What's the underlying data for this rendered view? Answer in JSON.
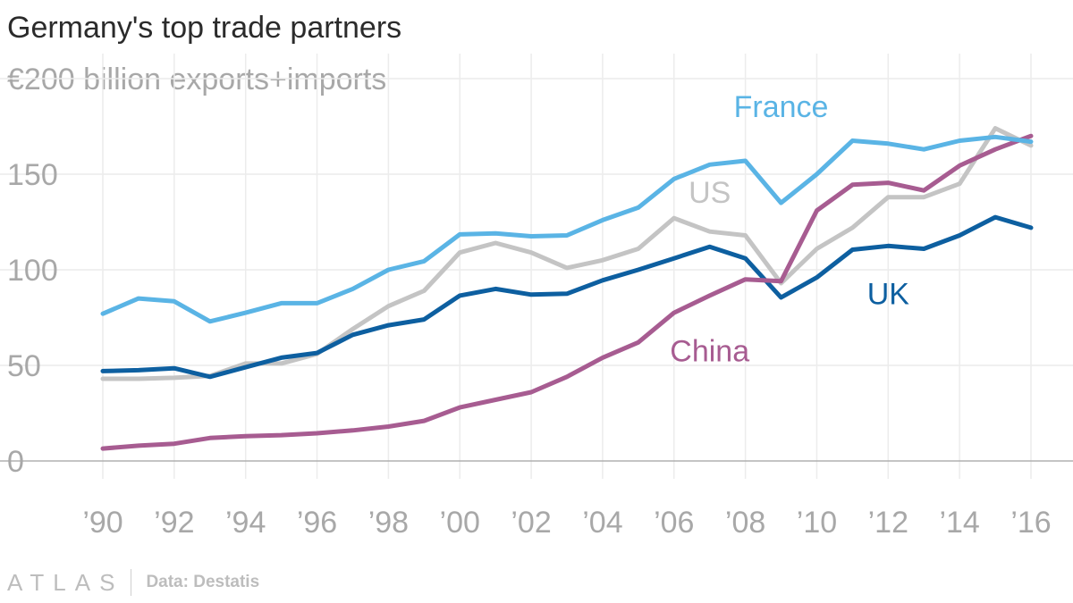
{
  "title": "Germany's top trade partners",
  "subtitle": "€200 billion exports+imports",
  "footer": {
    "logo": "ATLAS",
    "source": "Data: Destatis"
  },
  "colors": {
    "France": "#5ab4e5",
    "US": "#c4c4c4",
    "UK": "#0d5fa0",
    "China": "#a75c91",
    "grid": "#ececec",
    "axis": "#b0b0b0",
    "tick": "#a8a8a8"
  },
  "chart_data": {
    "type": "line",
    "title": "Germany's top trade partners",
    "subtitle": "€200 billion exports+imports",
    "xlabel": "",
    "ylabel": "",
    "x": [
      1990,
      1991,
      1992,
      1993,
      1994,
      1995,
      1996,
      1997,
      1998,
      1999,
      2000,
      2001,
      2002,
      2003,
      2004,
      2005,
      2006,
      2007,
      2008,
      2009,
      2010,
      2011,
      2012,
      2013,
      2014,
      2015,
      2016
    ],
    "xlim": [
      1990,
      2016
    ],
    "ylim": [
      0,
      200
    ],
    "xticks": [
      1990,
      1992,
      1994,
      1996,
      1998,
      2000,
      2002,
      2004,
      2006,
      2008,
      2010,
      2012,
      2014,
      2016
    ],
    "xtick_labels": [
      "’90",
      "’92",
      "’94",
      "’96",
      "’98",
      "’00",
      "’02",
      "’04",
      "’06",
      "’08",
      "’10",
      "’12",
      "’14",
      "’16"
    ],
    "yticks": [
      0,
      50,
      100,
      150
    ],
    "ytick_labels": [
      "0",
      "50",
      "100",
      "150"
    ],
    "series": [
      {
        "name": "US",
        "label": "US",
        "values": [
          43,
          43,
          43.5,
          44.5,
          51,
          51,
          56,
          69,
          81,
          89,
          109,
          114,
          109,
          101,
          105,
          111,
          127,
          120,
          118,
          93,
          111,
          122,
          138,
          138,
          145,
          174,
          165
        ]
      },
      {
        "name": "UK",
        "label": "UK",
        "values": [
          47,
          47.5,
          48.5,
          44,
          49,
          54,
          56.5,
          66,
          71,
          74,
          86.5,
          90,
          87,
          87.5,
          94.5,
          100,
          106,
          112,
          106,
          85.5,
          96,
          110.5,
          112.5,
          111,
          118,
          127.5,
          122
        ]
      },
      {
        "name": "China",
        "label": "China",
        "values": [
          6.5,
          8,
          9,
          12,
          13,
          13.5,
          14.5,
          16,
          18,
          21,
          28,
          32,
          36,
          44,
          54,
          62,
          77.5,
          86.5,
          95,
          94,
          131,
          144.5,
          145.5,
          141.5,
          154.5,
          163,
          170
        ]
      },
      {
        "name": "France",
        "label": "France",
        "values": [
          77,
          85,
          83.5,
          73,
          77.5,
          82.5,
          82.5,
          90,
          100,
          104.5,
          118.5,
          119,
          117.5,
          118,
          126,
          132.5,
          147.5,
          155,
          157,
          135,
          150,
          167.5,
          166,
          163,
          167.5,
          169.5,
          167
        ]
      }
    ]
  }
}
